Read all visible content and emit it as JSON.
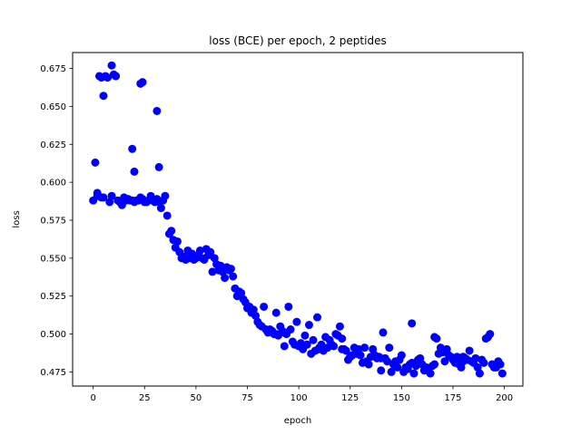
{
  "chart_data": {
    "type": "scatter",
    "title": "loss (BCE) per epoch, 2 peptides",
    "xlabel": "epoch",
    "ylabel": "loss",
    "xlim": [
      -10,
      209
    ],
    "ylim": [
      0.4657,
      0.6855
    ],
    "xticks": [
      0,
      25,
      50,
      75,
      100,
      125,
      150,
      175,
      200
    ],
    "xtick_labels": [
      "0",
      "25",
      "50",
      "75",
      "100",
      "125",
      "150",
      "175",
      "200"
    ],
    "yticks": [
      0.475,
      0.5,
      0.525,
      0.55,
      0.575,
      0.6,
      0.625,
      0.65,
      0.675
    ],
    "ytick_labels": [
      "0.475",
      "0.500",
      "0.525",
      "0.550",
      "0.575",
      "0.600",
      "0.625",
      "0.650",
      "0.675"
    ],
    "grid": false,
    "marker_color": "#0000ff",
    "series": [
      {
        "name": "",
        "x": [
          0,
          1,
          2,
          3,
          4,
          5,
          6,
          7,
          8,
          9,
          10,
          11,
          12,
          13,
          14,
          15,
          16,
          17,
          18,
          19,
          20,
          21,
          22,
          23,
          24,
          25,
          26,
          27,
          28,
          29,
          30,
          31,
          32,
          33,
          34,
          35,
          36,
          37,
          38,
          39,
          40,
          41,
          42,
          43,
          44,
          45,
          46,
          47,
          48,
          49,
          50,
          51,
          52,
          53,
          54,
          55,
          56,
          57,
          58,
          59,
          60,
          61,
          62,
          63,
          64,
          65,
          66,
          67,
          68,
          69,
          70,
          71,
          72,
          73,
          74,
          75,
          76,
          77,
          78,
          79,
          80,
          81,
          82,
          83,
          84,
          85,
          86,
          87,
          88,
          89,
          90,
          91,
          92,
          93,
          94,
          95,
          96,
          97,
          98,
          99,
          100,
          101,
          102,
          103,
          104,
          105,
          106,
          107,
          108,
          109,
          110,
          111,
          112,
          113,
          114,
          115,
          116,
          117,
          118,
          119,
          120,
          121,
          122,
          123,
          124,
          125,
          126,
          127,
          128,
          129,
          130,
          131,
          132,
          133,
          134,
          135,
          136,
          137,
          138,
          139,
          140,
          141,
          142,
          143,
          144,
          145,
          146,
          147,
          148,
          149,
          150,
          151,
          152,
          153,
          154,
          155,
          156,
          157,
          158,
          159,
          160,
          161,
          162,
          163,
          164,
          165,
          166,
          167,
          168,
          169,
          170,
          171,
          172,
          173,
          174,
          175,
          176,
          177,
          178,
          179,
          180,
          181,
          182,
          183,
          184,
          185,
          186,
          187,
          188,
          189,
          190,
          191,
          192,
          193,
          194,
          195,
          196,
          197,
          198,
          199,
          2,
          4,
          5,
          9,
          11,
          19,
          20,
          23,
          24,
          31,
          32,
          89,
          93,
          110,
          121,
          140,
          155,
          166,
          180,
          196
        ],
        "y": [
          0.588,
          0.613,
          0.593,
          0.67,
          0.59,
          0.657,
          0.67,
          0.669,
          0.587,
          0.677,
          0.671,
          0.67,
          0.588,
          0.587,
          0.585,
          0.59,
          0.588,
          0.589,
          0.588,
          0.588,
          0.607,
          0.588,
          0.588,
          0.665,
          0.666,
          0.587,
          0.587,
          0.588,
          0.591,
          0.588,
          0.587,
          0.647,
          0.61,
          0.583,
          0.588,
          0.591,
          0.578,
          0.566,
          0.568,
          0.562,
          0.557,
          0.561,
          0.554,
          0.55,
          0.551,
          0.549,
          0.555,
          0.55,
          0.553,
          0.549,
          0.55,
          0.552,
          0.555,
          0.55,
          0.549,
          0.556,
          0.552,
          0.554,
          0.541,
          0.55,
          0.546,
          0.542,
          0.545,
          0.541,
          0.537,
          0.544,
          0.542,
          0.543,
          0.538,
          0.53,
          0.525,
          0.528,
          0.527,
          0.523,
          0.521,
          0.517,
          0.518,
          0.514,
          0.516,
          0.512,
          0.508,
          0.506,
          0.505,
          0.518,
          0.503,
          0.501,
          0.503,
          0.502,
          0.5,
          0.5,
          0.499,
          0.505,
          0.502,
          0.501,
          0.5,
          0.518,
          0.503,
          0.495,
          0.493,
          0.508,
          0.492,
          0.494,
          0.49,
          0.499,
          0.493,
          0.506,
          0.487,
          0.496,
          0.489,
          0.511,
          0.491,
          0.493,
          0.489,
          0.498,
          0.491,
          0.496,
          0.493,
          0.492,
          0.5,
          0.499,
          0.505,
          0.49,
          0.49,
          0.489,
          0.483,
          0.485,
          0.486,
          0.491,
          0.487,
          0.49,
          0.486,
          0.481,
          0.491,
          0.482,
          0.48,
          0.485,
          0.49,
          0.486,
          0.484,
          0.485,
          0.484,
          0.501,
          0.484,
          0.482,
          0.491,
          0.475,
          0.48,
          0.482,
          0.478,
          0.483,
          0.486,
          0.475,
          0.478,
          0.477,
          0.48,
          0.481,
          0.474,
          0.479,
          0.483,
          0.484,
          0.48,
          0.476,
          0.478,
          0.476,
          0.474,
          0.479,
          0.48,
          0.497,
          0.487,
          0.491,
          0.488,
          0.482,
          0.49,
          0.486,
          0.485,
          0.483,
          0.481,
          0.485,
          0.48,
          0.478,
          0.482,
          0.484,
          0.483,
          0.489,
          0.482,
          0.481,
          0.484,
          0.478,
          0.474,
          0.483,
          0.481,
          0.497,
          0.498,
          0.5,
          0.48,
          0.478,
          0.479,
          0.482,
          0.48,
          0.474,
          0.591,
          0.669,
          0.59,
          0.591,
          0.67,
          0.622,
          0.587,
          0.59,
          0.589,
          0.589,
          0.587,
          0.514,
          0.492,
          0.49,
          0.497,
          0.476,
          0.507,
          0.498,
          0.485,
          0.478
        ]
      }
    ]
  }
}
